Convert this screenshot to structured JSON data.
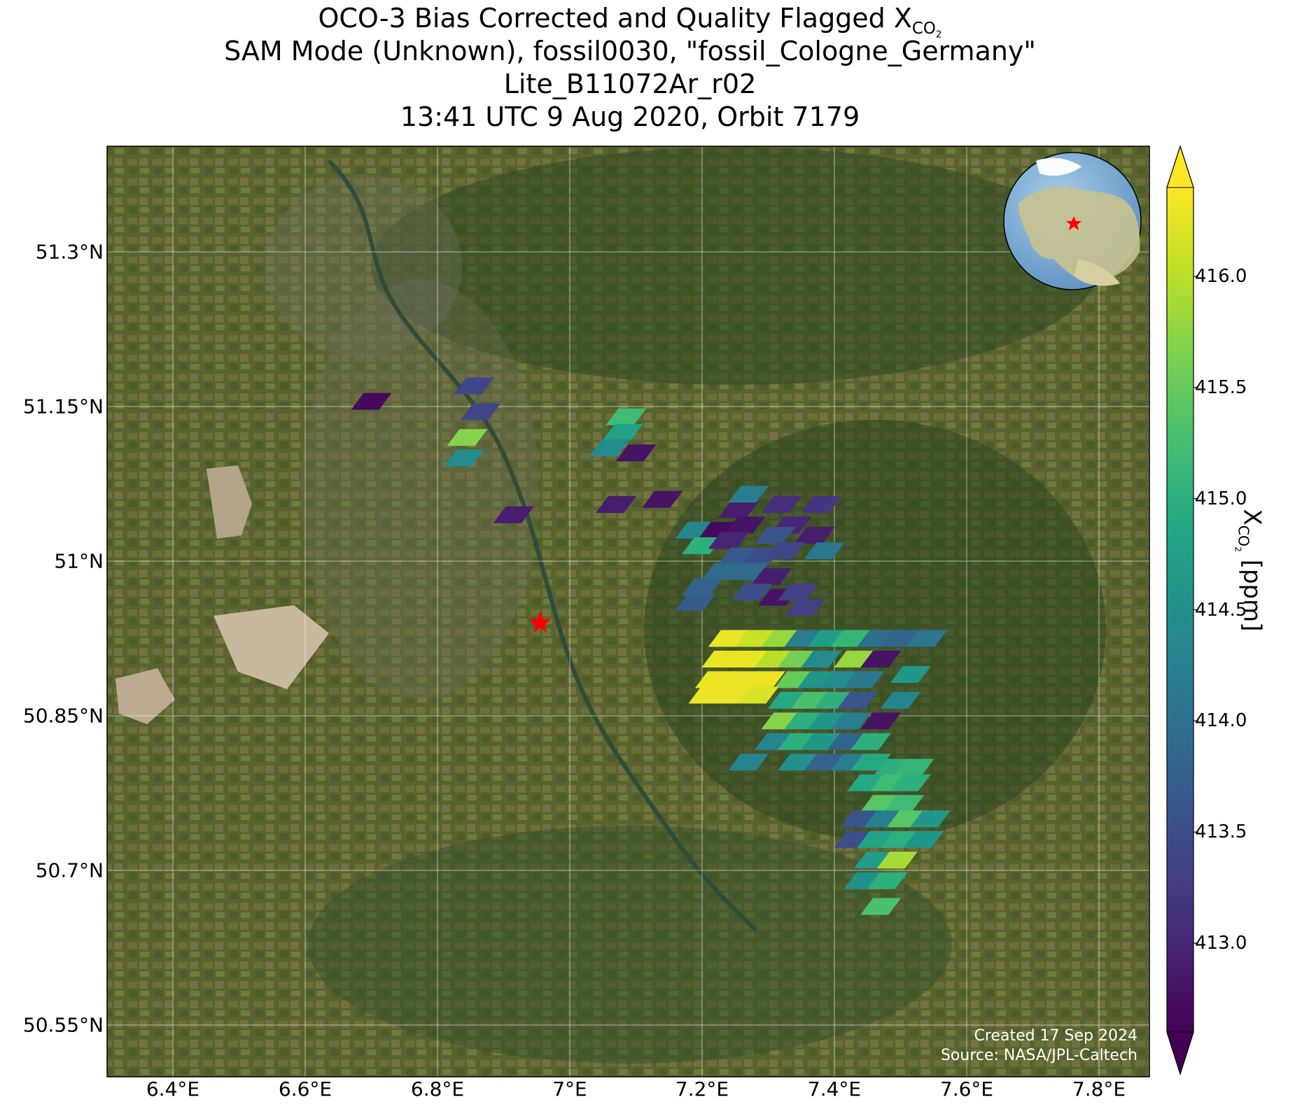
{
  "title": {
    "line1_prefix": "OCO-3 Bias Corrected and Quality Flagged X",
    "line1_sub": "CO",
    "line1_sub2": "2",
    "line2": "SAM Mode (Unknown), fossil0030, \"fossil_Cologne_Germany\"",
    "line3": "Lite_B11072Ar_r02",
    "line4": "13:41 UTC 9 Aug 2020, Orbit 7179"
  },
  "axes": {
    "lat_ticks": [
      "51.3°N",
      "51.15°N",
      "51°N",
      "50.85°N",
      "50.7°N",
      "50.55°N"
    ],
    "lon_ticks": [
      "6.4°E",
      "6.6°E",
      "6.8°E",
      "7°E",
      "7.2°E",
      "7.4°E",
      "7.6°E",
      "7.8°E"
    ]
  },
  "colorbar": {
    "ticks": [
      "416.0",
      "415.5",
      "415.0",
      "414.5",
      "414.0",
      "413.5",
      "413.0"
    ],
    "label_prefix": "X",
    "label_sub": "CO",
    "label_sub2": "2",
    "label_suffix": " [ppm]",
    "range": [
      412.6,
      416.4
    ],
    "colormap": "viridis",
    "extend": "both"
  },
  "credit": {
    "line1": "Created 17 Sep 2024",
    "line2": "Source: NASA/JPL-Caltech"
  },
  "target_marker": {
    "name": "Cologne",
    "lon": 6.955,
    "lat": 50.94,
    "color": "#ff0000",
    "symbol": "star"
  },
  "map_extent": {
    "lon": [
      6.3,
      7.9
    ],
    "lat": [
      50.5,
      51.4
    ]
  },
  "inset_globe": {
    "marker_color": "#ff0000",
    "symbol": "star"
  },
  "soundings": [
    {
      "lon": 6.7,
      "lat": 51.155,
      "xco2": 412.7
    },
    {
      "lon": 6.855,
      "lat": 51.17,
      "xco2": 413.4
    },
    {
      "lon": 6.865,
      "lat": 51.145,
      "xco2": 413.4
    },
    {
      "lon": 6.845,
      "lat": 51.12,
      "xco2": 415.7
    },
    {
      "lon": 6.84,
      "lat": 51.1,
      "xco2": 414.4
    },
    {
      "lon": 6.915,
      "lat": 51.045,
      "xco2": 412.9
    },
    {
      "lon": 7.085,
      "lat": 51.14,
      "xco2": 415.2
    },
    {
      "lon": 7.08,
      "lat": 51.125,
      "xco2": 414.8
    },
    {
      "lon": 7.06,
      "lat": 51.11,
      "xco2": 414.4
    },
    {
      "lon": 7.1,
      "lat": 51.105,
      "xco2": 412.8
    },
    {
      "lon": 7.07,
      "lat": 51.055,
      "xco2": 412.9
    },
    {
      "lon": 7.14,
      "lat": 51.06,
      "xco2": 412.8
    },
    {
      "lon": 7.255,
      "lat": 51.05,
      "xco2": 412.9
    },
    {
      "lon": 7.27,
      "lat": 51.065,
      "xco2": 414.2
    },
    {
      "lon": 7.32,
      "lat": 51.055,
      "xco2": 413.1
    },
    {
      "lon": 7.38,
      "lat": 51.055,
      "xco2": 413.2
    },
    {
      "lon": 7.19,
      "lat": 51.03,
      "xco2": 414.3
    },
    {
      "lon": 7.225,
      "lat": 51.03,
      "xco2": 412.7
    },
    {
      "lon": 7.265,
      "lat": 51.035,
      "xco2": 412.8
    },
    {
      "lon": 7.335,
      "lat": 51.035,
      "xco2": 413.0
    },
    {
      "lon": 7.2,
      "lat": 51.015,
      "xco2": 415.0
    },
    {
      "lon": 7.24,
      "lat": 51.02,
      "xco2": 413.0
    },
    {
      "lon": 7.31,
      "lat": 51.025,
      "xco2": 413.6
    },
    {
      "lon": 7.37,
      "lat": 51.025,
      "xco2": 412.9
    },
    {
      "lon": 7.255,
      "lat": 51.005,
      "xco2": 413.7
    },
    {
      "lon": 7.29,
      "lat": 51.005,
      "xco2": 413.5
    },
    {
      "lon": 7.325,
      "lat": 51.01,
      "xco2": 413.4
    },
    {
      "lon": 7.385,
      "lat": 51.01,
      "xco2": 414.1
    },
    {
      "lon": 7.23,
      "lat": 50.99,
      "xco2": 413.9
    },
    {
      "lon": 7.27,
      "lat": 50.99,
      "xco2": 413.9
    },
    {
      "lon": 7.305,
      "lat": 50.985,
      "xco2": 412.9
    },
    {
      "lon": 7.2,
      "lat": 50.975,
      "xco2": 413.8
    },
    {
      "lon": 7.275,
      "lat": 50.97,
      "xco2": 413.5
    },
    {
      "lon": 7.315,
      "lat": 50.965,
      "xco2": 412.8
    },
    {
      "lon": 7.345,
      "lat": 50.97,
      "xco2": 413.3
    },
    {
      "lon": 7.19,
      "lat": 50.96,
      "xco2": 413.7
    },
    {
      "lon": 7.355,
      "lat": 50.955,
      "xco2": 413.3
    },
    {
      "lon": 7.24,
      "lat": 50.925,
      "xco2": 416.3
    },
    {
      "lon": 7.28,
      "lat": 50.925,
      "xco2": 416.1
    },
    {
      "lon": 7.32,
      "lat": 50.925,
      "xco2": 415.8
    },
    {
      "lon": 7.355,
      "lat": 50.925,
      "xco2": 414.2
    },
    {
      "lon": 7.39,
      "lat": 50.925,
      "xco2": 414.7
    },
    {
      "lon": 7.425,
      "lat": 50.925,
      "xco2": 415.1
    },
    {
      "lon": 7.465,
      "lat": 50.925,
      "xco2": 414.0
    },
    {
      "lon": 7.5,
      "lat": 50.925,
      "xco2": 413.8
    },
    {
      "lon": 7.54,
      "lat": 50.925,
      "xco2": 414.1
    },
    {
      "lon": 7.23,
      "lat": 50.905,
      "xco2": 416.3
    },
    {
      "lon": 7.27,
      "lat": 50.905,
      "xco2": 416.3
    },
    {
      "lon": 7.31,
      "lat": 50.905,
      "xco2": 416.0
    },
    {
      "lon": 7.345,
      "lat": 50.905,
      "xco2": 415.6
    },
    {
      "lon": 7.38,
      "lat": 50.905,
      "xco2": 414.4
    },
    {
      "lon": 7.43,
      "lat": 50.905,
      "xco2": 415.8
    },
    {
      "lon": 7.47,
      "lat": 50.905,
      "xco2": 412.8
    },
    {
      "lon": 7.22,
      "lat": 50.885,
      "xco2": 416.3
    },
    {
      "lon": 7.255,
      "lat": 50.885,
      "xco2": 416.3
    },
    {
      "lon": 7.295,
      "lat": 50.885,
      "xco2": 416.3
    },
    {
      "lon": 7.34,
      "lat": 50.885,
      "xco2": 415.5
    },
    {
      "lon": 7.375,
      "lat": 50.885,
      "xco2": 414.6
    },
    {
      "lon": 7.41,
      "lat": 50.885,
      "xco2": 414.4
    },
    {
      "lon": 7.445,
      "lat": 50.885,
      "xco2": 414.1
    },
    {
      "lon": 7.515,
      "lat": 50.89,
      "xco2": 414.6
    },
    {
      "lon": 7.21,
      "lat": 50.87,
      "xco2": 416.3
    },
    {
      "lon": 7.25,
      "lat": 50.87,
      "xco2": 416.3
    },
    {
      "lon": 7.285,
      "lat": 50.87,
      "xco2": 416.2
    },
    {
      "lon": 7.33,
      "lat": 50.865,
      "xco2": 414.9
    },
    {
      "lon": 7.365,
      "lat": 50.865,
      "xco2": 415.3
    },
    {
      "lon": 7.4,
      "lat": 50.865,
      "xco2": 415.0
    },
    {
      "lon": 7.435,
      "lat": 50.865,
      "xco2": 413.6
    },
    {
      "lon": 7.5,
      "lat": 50.865,
      "xco2": 414.3
    },
    {
      "lon": 7.32,
      "lat": 50.845,
      "xco2": 415.7
    },
    {
      "lon": 7.355,
      "lat": 50.845,
      "xco2": 415.0
    },
    {
      "lon": 7.39,
      "lat": 50.845,
      "xco2": 414.6
    },
    {
      "lon": 7.425,
      "lat": 50.845,
      "xco2": 414.2
    },
    {
      "lon": 7.47,
      "lat": 50.845,
      "xco2": 412.8
    },
    {
      "lon": 7.31,
      "lat": 50.825,
      "xco2": 414.3
    },
    {
      "lon": 7.345,
      "lat": 50.825,
      "xco2": 415.0
    },
    {
      "lon": 7.38,
      "lat": 50.825,
      "xco2": 414.6
    },
    {
      "lon": 7.42,
      "lat": 50.825,
      "xco2": 413.8
    },
    {
      "lon": 7.455,
      "lat": 50.825,
      "xco2": 415.0
    },
    {
      "lon": 7.27,
      "lat": 50.805,
      "xco2": 414.3
    },
    {
      "lon": 7.345,
      "lat": 50.805,
      "xco2": 414.5
    },
    {
      "lon": 7.385,
      "lat": 50.805,
      "xco2": 413.8
    },
    {
      "lon": 7.425,
      "lat": 50.805,
      "xco2": 414.2
    },
    {
      "lon": 7.455,
      "lat": 50.805,
      "xco2": 414.9
    },
    {
      "lon": 7.49,
      "lat": 50.8,
      "xco2": 415.0
    },
    {
      "lon": 7.52,
      "lat": 50.8,
      "xco2": 415.1
    },
    {
      "lon": 7.45,
      "lat": 50.785,
      "xco2": 414.9
    },
    {
      "lon": 7.485,
      "lat": 50.785,
      "xco2": 415.2
    },
    {
      "lon": 7.515,
      "lat": 50.785,
      "xco2": 415.0
    },
    {
      "lon": 7.47,
      "lat": 50.765,
      "xco2": 415.4
    },
    {
      "lon": 7.505,
      "lat": 50.765,
      "xco2": 415.2
    },
    {
      "lon": 7.44,
      "lat": 50.75,
      "xco2": 413.6
    },
    {
      "lon": 7.475,
      "lat": 50.75,
      "xco2": 414.2
    },
    {
      "lon": 7.51,
      "lat": 50.75,
      "xco2": 415.4
    },
    {
      "lon": 7.545,
      "lat": 50.75,
      "xco2": 414.6
    },
    {
      "lon": 7.43,
      "lat": 50.73,
      "xco2": 413.5
    },
    {
      "lon": 7.465,
      "lat": 50.73,
      "xco2": 414.8
    },
    {
      "lon": 7.5,
      "lat": 50.73,
      "xco2": 415.0
    },
    {
      "lon": 7.535,
      "lat": 50.73,
      "xco2": 414.6
    },
    {
      "lon": 7.46,
      "lat": 50.71,
      "xco2": 414.7
    },
    {
      "lon": 7.495,
      "lat": 50.71,
      "xco2": 415.9
    },
    {
      "lon": 7.445,
      "lat": 50.69,
      "xco2": 414.5
    },
    {
      "lon": 7.48,
      "lat": 50.69,
      "xco2": 415.0
    },
    {
      "lon": 7.47,
      "lat": 50.665,
      "xco2": 415.3
    }
  ]
}
